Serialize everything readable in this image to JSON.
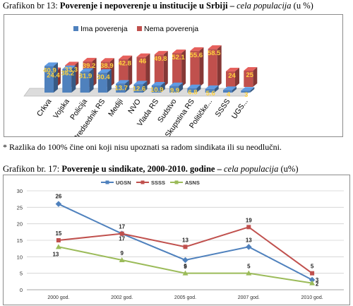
{
  "captions": {
    "chart1_prefix": "Grafikon br 13: ",
    "chart1_bold": "Poverenje i nepoverenje u institucije  u Srbiji – ",
    "chart1_italic": "cela populacija",
    "chart1_suffix": " (u %)",
    "note": "* Razlika do 100% čine oni koji nisu upoznati sa radom sindikata ili su neodlučni.",
    "chart2_prefix": "Grafikon br. 17: ",
    "chart2_bold": "Poverenje u sindikate, 2000-2010. godine – ",
    "chart2_italic": "cela populacija",
    "chart2_suffix": " (u%)"
  },
  "chart_data": [
    {
      "type": "bar",
      "categories": [
        "Crkva",
        "Vojska",
        "Policija",
        "Predsednik RS",
        "Mediji",
        "NVO",
        "Vlada RS",
        "Sudstvo",
        "Skupstina RS",
        "Političke...",
        "SSSS",
        "UGS..."
      ],
      "series": [
        {
          "name": "Ima poverenja",
          "values": [
            40.9,
            36.2,
            31.9,
            30.4,
            13.7,
            12.6,
            10.9,
            9.9,
            6.8,
            5.6,
            4,
            3
          ],
          "color": "#4f81bd"
        },
        {
          "name": "Nema poverenja",
          "values": [
            24.4,
            33.3,
            39.2,
            38.9,
            42.8,
            46,
            49.8,
            52.1,
            55.6,
            58.5,
            24,
            25
          ],
          "color": "#c0504d"
        }
      ],
      "value_labels": [
        [
          "40.9",
          "36.2",
          "31.9",
          "30.4",
          "13.7",
          "12.6",
          "10.9",
          "9.9",
          "6.8",
          "5.6",
          "4",
          "3"
        ],
        [
          "24.4",
          "33.3",
          "39.2",
          "38.9",
          "42.8",
          "46",
          "49.8",
          "52.1",
          "55.6",
          "58.5",
          "24",
          "25"
        ]
      ],
      "legend_position": "top",
      "grid": false
    },
    {
      "type": "line",
      "categories": [
        "2000 god.",
        "2002 god.",
        "2005 god.",
        "2007 god.",
        "2010 god."
      ],
      "series": [
        {
          "name": "UGSN",
          "values": [
            26,
            17,
            9,
            13,
            3
          ],
          "color": "#4f81bd"
        },
        {
          "name": "SSSS",
          "values": [
            15,
            17,
            13,
            19,
            5
          ],
          "color": "#c0504d"
        },
        {
          "name": "ASNS",
          "values": [
            13,
            9,
            5,
            5,
            2
          ],
          "color": "#9bbb59"
        }
      ],
      "ylim": [
        0,
        30
      ],
      "yticks": [
        "0",
        "5",
        "10",
        "15",
        "20",
        "25",
        "30"
      ],
      "legend_position": "top",
      "grid": true
    }
  ]
}
